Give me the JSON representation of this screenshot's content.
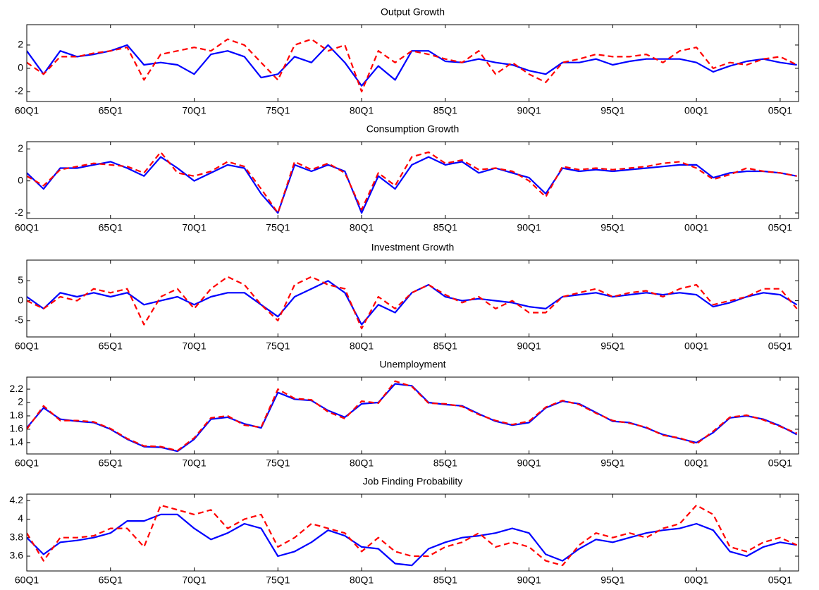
{
  "chart_data": [
    {
      "type": "line",
      "title": "Output Growth",
      "x": [
        1960,
        1961,
        1962,
        1963,
        1964,
        1965,
        1966,
        1967,
        1968,
        1969,
        1970,
        1971,
        1972,
        1973,
        1974,
        1975,
        1976,
        1977,
        1978,
        1979,
        1980,
        1981,
        1982,
        1983,
        1984,
        1985,
        1986,
        1987,
        1988,
        1989,
        1990,
        1991,
        1992,
        1993,
        1994,
        1995,
        1996,
        1997,
        1998,
        1999,
        2000,
        2001,
        2002,
        2003,
        2004,
        2005,
        2006
      ],
      "xlim": [
        1960,
        2006.1
      ],
      "xticks": [
        {
          "value": 1960,
          "label": "60Q1"
        },
        {
          "value": 1965,
          "label": "65Q1"
        },
        {
          "value": 1970,
          "label": "70Q1"
        },
        {
          "value": 1975,
          "label": "75Q1"
        },
        {
          "value": 1980,
          "label": "80Q1"
        },
        {
          "value": 1985,
          "label": "85Q1"
        },
        {
          "value": 1990,
          "label": "90Q1"
        },
        {
          "value": 1995,
          "label": "95Q1"
        },
        {
          "value": 2000,
          "label": "00Q1"
        },
        {
          "value": 2005,
          "label": "05Q1"
        }
      ],
      "ylim": [
        -2.85,
        3.75
      ],
      "yticks": [
        -2,
        0,
        2
      ],
      "series": [
        {
          "color": "#0000ff",
          "dash": false,
          "values": [
            1.5,
            -0.5,
            1.5,
            1.0,
            1.2,
            1.5,
            2.0,
            0.3,
            0.5,
            0.3,
            -0.5,
            1.2,
            1.5,
            1.0,
            -0.8,
            -0.5,
            1.0,
            0.5,
            2.0,
            0.5,
            -1.5,
            0.2,
            -1.0,
            1.5,
            1.5,
            0.6,
            0.5,
            0.8,
            0.5,
            0.3,
            -0.2,
            -0.5,
            0.5,
            0.5,
            0.8,
            0.3,
            0.6,
            0.8,
            0.8,
            0.8,
            0.5,
            -0.3,
            0.2,
            0.6,
            0.8,
            0.5,
            0.3
          ]
        },
        {
          "color": "#ff0000",
          "dash": true,
          "values": [
            0.5,
            -0.5,
            1.0,
            1.0,
            1.3,
            1.5,
            1.8,
            -1.0,
            1.2,
            1.5,
            1.8,
            1.5,
            2.5,
            2.0,
            0.5,
            -1.0,
            2.0,
            2.5,
            1.5,
            2.0,
            -2.0,
            1.5,
            0.5,
            1.5,
            1.2,
            0.8,
            0.5,
            1.5,
            -0.5,
            0.5,
            -0.5,
            -1.2,
            0.5,
            0.8,
            1.2,
            1.0,
            1.0,
            1.2,
            0.5,
            1.5,
            1.8,
            0.0,
            0.5,
            0.3,
            0.8,
            1.0,
            0.3
          ]
        }
      ]
    },
    {
      "type": "line",
      "title": "Consumption Growth",
      "x": [
        1960,
        1961,
        1962,
        1963,
        1964,
        1965,
        1966,
        1967,
        1968,
        1969,
        1970,
        1971,
        1972,
        1973,
        1974,
        1975,
        1976,
        1977,
        1978,
        1979,
        1980,
        1981,
        1982,
        1983,
        1984,
        1985,
        1986,
        1987,
        1988,
        1989,
        1990,
        1991,
        1992,
        1993,
        1994,
        1995,
        1996,
        1997,
        1998,
        1999,
        2000,
        2001,
        2002,
        2003,
        2004,
        2005,
        2006
      ],
      "xlim": [
        1960,
        2006.1
      ],
      "xticks": [
        {
          "value": 1960,
          "label": "60Q1"
        },
        {
          "value": 1965,
          "label": "65Q1"
        },
        {
          "value": 1970,
          "label": "70Q1"
        },
        {
          "value": 1975,
          "label": "75Q1"
        },
        {
          "value": 1980,
          "label": "80Q1"
        },
        {
          "value": 1985,
          "label": "85Q1"
        },
        {
          "value": 1990,
          "label": "90Q1"
        },
        {
          "value": 1995,
          "label": "95Q1"
        },
        {
          "value": 2000,
          "label": "00Q1"
        },
        {
          "value": 2005,
          "label": "05Q1"
        }
      ],
      "ylim": [
        -2.35,
        2.45
      ],
      "yticks": [
        -2,
        0,
        2
      ],
      "series": [
        {
          "color": "#0000ff",
          "dash": false,
          "values": [
            0.5,
            -0.5,
            0.8,
            0.8,
            1.0,
            1.2,
            0.8,
            0.3,
            1.5,
            0.8,
            0.0,
            0.5,
            1.0,
            0.8,
            -0.8,
            -2.0,
            1.0,
            0.6,
            1.0,
            0.6,
            -2.0,
            0.3,
            -0.5,
            1.0,
            1.5,
            1.0,
            1.2,
            0.5,
            0.8,
            0.5,
            0.2,
            -0.8,
            0.8,
            0.6,
            0.7,
            0.6,
            0.7,
            0.8,
            0.9,
            1.0,
            1.0,
            0.2,
            0.5,
            0.6,
            0.6,
            0.5,
            0.3
          ]
        },
        {
          "color": "#ff0000",
          "dash": true,
          "values": [
            0.3,
            -0.3,
            0.7,
            0.9,
            1.1,
            1.0,
            0.9,
            0.5,
            1.8,
            0.5,
            0.3,
            0.6,
            1.2,
            0.9,
            -0.5,
            -2.0,
            1.2,
            0.7,
            1.1,
            0.5,
            -1.8,
            0.5,
            -0.3,
            1.5,
            1.8,
            1.1,
            1.3,
            0.7,
            0.8,
            0.6,
            0.0,
            -1.0,
            0.9,
            0.7,
            0.8,
            0.7,
            0.8,
            0.9,
            1.1,
            1.2,
            0.8,
            0.1,
            0.4,
            0.8,
            0.6,
            0.5,
            0.3
          ]
        }
      ]
    },
    {
      "type": "line",
      "title": "Investment Growth",
      "x": [
        1960,
        1961,
        1962,
        1963,
        1964,
        1965,
        1966,
        1967,
        1968,
        1969,
        1970,
        1971,
        1972,
        1973,
        1974,
        1975,
        1976,
        1977,
        1978,
        1979,
        1980,
        1981,
        1982,
        1983,
        1984,
        1985,
        1986,
        1987,
        1988,
        1989,
        1990,
        1991,
        1992,
        1993,
        1994,
        1995,
        1996,
        1997,
        1998,
        1999,
        2000,
        2001,
        2002,
        2003,
        2004,
        2005,
        2006
      ],
      "xlim": [
        1960,
        2006.1
      ],
      "xticks": [
        {
          "value": 1960,
          "label": "60Q1"
        },
        {
          "value": 1965,
          "label": "65Q1"
        },
        {
          "value": 1970,
          "label": "70Q1"
        },
        {
          "value": 1975,
          "label": "75Q1"
        },
        {
          "value": 1980,
          "label": "80Q1"
        },
        {
          "value": 1985,
          "label": "85Q1"
        },
        {
          "value": 1990,
          "label": "90Q1"
        },
        {
          "value": 1995,
          "label": "95Q1"
        },
        {
          "value": 2000,
          "label": "00Q1"
        },
        {
          "value": 2005,
          "label": "05Q1"
        }
      ],
      "ylim": [
        -9.1,
        10.2
      ],
      "yticks": [
        -5,
        0,
        5
      ],
      "series": [
        {
          "color": "#0000ff",
          "dash": false,
          "values": [
            1,
            -2,
            2,
            1,
            2,
            1,
            2,
            -1,
            0,
            1,
            -1,
            1,
            2,
            2,
            -1,
            -4,
            1,
            3,
            5,
            2,
            -6,
            -1,
            -3,
            2,
            4,
            1,
            0,
            0.5,
            0,
            -0.5,
            -1.5,
            -2,
            1,
            1.5,
            2,
            1,
            1.5,
            2,
            1.5,
            2,
            1.5,
            -1.5,
            -0.5,
            1,
            2,
            1.5,
            -1
          ]
        },
        {
          "color": "#ff0000",
          "dash": true,
          "values": [
            0,
            -2,
            1,
            0,
            3,
            2,
            3,
            -6,
            1,
            3,
            -2,
            3,
            6,
            4,
            -1,
            -5,
            4,
            6,
            4,
            3,
            -7,
            1,
            -2,
            2,
            4,
            1.5,
            -0.5,
            1,
            -2,
            0,
            -3,
            -3,
            1,
            2,
            3,
            1,
            2,
            2.5,
            1,
            3,
            4,
            -1,
            0,
            1,
            3,
            3,
            -2
          ]
        }
      ]
    },
    {
      "type": "line",
      "title": "Unemployment",
      "x": [
        1960,
        1961,
        1962,
        1963,
        1964,
        1965,
        1966,
        1967,
        1968,
        1969,
        1970,
        1971,
        1972,
        1973,
        1974,
        1975,
        1976,
        1977,
        1978,
        1979,
        1980,
        1981,
        1982,
        1983,
        1984,
        1985,
        1986,
        1987,
        1988,
        1989,
        1990,
        1991,
        1992,
        1993,
        1994,
        1995,
        1996,
        1997,
        1998,
        1999,
        2000,
        2001,
        2002,
        2003,
        2004,
        2005,
        2006
      ],
      "xlim": [
        1960,
        2006.1
      ],
      "xticks": [
        {
          "value": 1960,
          "label": "60Q1"
        },
        {
          "value": 1965,
          "label": "65Q1"
        },
        {
          "value": 1970,
          "label": "70Q1"
        },
        {
          "value": 1975,
          "label": "75Q1"
        },
        {
          "value": 1980,
          "label": "80Q1"
        },
        {
          "value": 1985,
          "label": "85Q1"
        },
        {
          "value": 1990,
          "label": "90Q1"
        },
        {
          "value": 1995,
          "label": "95Q1"
        },
        {
          "value": 2000,
          "label": "00Q1"
        },
        {
          "value": 2005,
          "label": "05Q1"
        }
      ],
      "ylim": [
        1.23,
        2.38
      ],
      "yticks": [
        1.4,
        1.6,
        1.8,
        2,
        2.2
      ],
      "series": [
        {
          "color": "#0000ff",
          "dash": false,
          "values": [
            1.62,
            1.92,
            1.75,
            1.72,
            1.7,
            1.6,
            1.45,
            1.34,
            1.33,
            1.27,
            1.45,
            1.75,
            1.78,
            1.68,
            1.62,
            2.15,
            2.05,
            2.03,
            1.88,
            1.78,
            1.98,
            2.0,
            2.28,
            2.25,
            2.0,
            1.97,
            1.95,
            1.83,
            1.72,
            1.66,
            1.7,
            1.92,
            2.02,
            1.98,
            1.85,
            1.72,
            1.7,
            1.62,
            1.52,
            1.46,
            1.4,
            1.55,
            1.77,
            1.8,
            1.75,
            1.65,
            1.52
          ]
        },
        {
          "color": "#ff0000",
          "dash": true,
          "values": [
            1.6,
            1.95,
            1.73,
            1.73,
            1.71,
            1.61,
            1.46,
            1.35,
            1.34,
            1.28,
            1.47,
            1.77,
            1.8,
            1.66,
            1.63,
            2.2,
            2.06,
            2.04,
            1.86,
            1.76,
            2.02,
            1.99,
            2.32,
            2.24,
            1.99,
            1.98,
            1.94,
            1.82,
            1.73,
            1.67,
            1.72,
            1.93,
            2.03,
            1.97,
            1.84,
            1.73,
            1.69,
            1.63,
            1.51,
            1.47,
            1.38,
            1.57,
            1.78,
            1.81,
            1.74,
            1.64,
            1.54
          ]
        }
      ]
    },
    {
      "type": "line",
      "title": "Job Finding Probability",
      "x": [
        1960,
        1961,
        1962,
        1963,
        1964,
        1965,
        1966,
        1967,
        1968,
        1969,
        1970,
        1971,
        1972,
        1973,
        1974,
        1975,
        1976,
        1977,
        1978,
        1979,
        1980,
        1981,
        1982,
        1983,
        1984,
        1985,
        1986,
        1987,
        1988,
        1989,
        1990,
        1991,
        1992,
        1993,
        1994,
        1995,
        1996,
        1997,
        1998,
        1999,
        2000,
        2001,
        2002,
        2003,
        2004,
        2005,
        2006
      ],
      "xlim": [
        1960,
        2006.1
      ],
      "xticks": [
        {
          "value": 1960,
          "label": "60Q1"
        },
        {
          "value": 1965,
          "label": "65Q1"
        },
        {
          "value": 1970,
          "label": "70Q1"
        },
        {
          "value": 1975,
          "label": "75Q1"
        },
        {
          "value": 1980,
          "label": "80Q1"
        },
        {
          "value": 1985,
          "label": "85Q1"
        },
        {
          "value": 1990,
          "label": "90Q1"
        },
        {
          "value": 1995,
          "label": "95Q1"
        },
        {
          "value": 2000,
          "label": "00Q1"
        },
        {
          "value": 2005,
          "label": "05Q1"
        }
      ],
      "ylim": [
        3.44,
        4.27
      ],
      "yticks": [
        3.6,
        3.8,
        4,
        4.2
      ],
      "series": [
        {
          "color": "#0000ff",
          "dash": false,
          "values": [
            3.8,
            3.62,
            3.75,
            3.77,
            3.8,
            3.85,
            3.98,
            3.98,
            4.05,
            4.05,
            3.9,
            3.78,
            3.85,
            3.95,
            3.9,
            3.6,
            3.65,
            3.75,
            3.88,
            3.82,
            3.7,
            3.68,
            3.52,
            3.5,
            3.68,
            3.75,
            3.8,
            3.82,
            3.85,
            3.9,
            3.85,
            3.62,
            3.55,
            3.68,
            3.78,
            3.75,
            3.8,
            3.85,
            3.88,
            3.9,
            3.95,
            3.88,
            3.65,
            3.6,
            3.7,
            3.75,
            3.72
          ]
        },
        {
          "color": "#ff0000",
          "dash": true,
          "values": [
            3.85,
            3.55,
            3.8,
            3.8,
            3.82,
            3.9,
            3.9,
            3.7,
            4.15,
            4.1,
            4.05,
            4.1,
            3.9,
            4.0,
            4.05,
            3.7,
            3.8,
            3.95,
            3.9,
            3.85,
            3.65,
            3.8,
            3.65,
            3.6,
            3.6,
            3.7,
            3.75,
            3.85,
            3.7,
            3.75,
            3.7,
            3.55,
            3.5,
            3.72,
            3.85,
            3.8,
            3.85,
            3.8,
            3.9,
            3.95,
            4.15,
            4.05,
            3.7,
            3.65,
            3.75,
            3.8,
            3.72
          ]
        }
      ]
    }
  ]
}
